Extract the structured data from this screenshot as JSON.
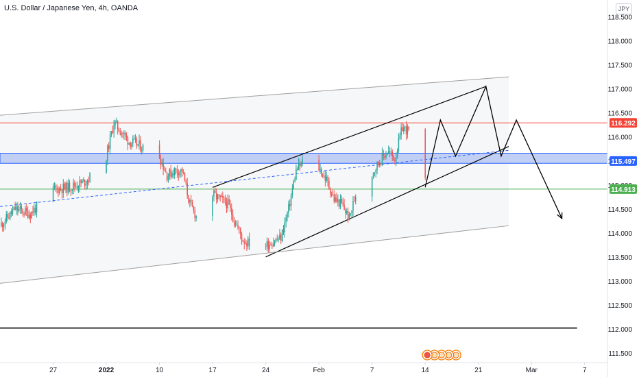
{
  "header": {
    "title": "U.S. Dollar / Japanese Yen, 4h, OANDA",
    "currency": "JPY"
  },
  "colors": {
    "up": "#26a69a",
    "down": "#ef5350",
    "red_line": "#f44336",
    "green_line": "#4caf50",
    "zone_fill": "#b9c8f5",
    "zone_border": "#2962ff",
    "drawing": "#000000",
    "channel": "#9e9e9e",
    "axis_text": "#131722"
  },
  "chart_data": {
    "type": "candlestick",
    "title": "U.S. Dollar / Japanese Yen, 4h, OANDA",
    "y_axis": {
      "range": [
        111.3,
        118.85
      ],
      "ticks": [
        "118.500",
        "118.000",
        "117.500",
        "117.000",
        "116.500",
        "116.000",
        "115.500",
        "115.000",
        "114.500",
        "114.000",
        "113.500",
        "113.000",
        "112.500",
        "112.000",
        "111.500"
      ],
      "tick_values": [
        118.5,
        118.0,
        117.5,
        117.0,
        116.5,
        116.0,
        115.5,
        115.0,
        114.5,
        114.0,
        113.5,
        113.0,
        112.5,
        112.0,
        111.5
      ]
    },
    "x_axis": {
      "labels": [
        "27",
        "2022",
        "10",
        "17",
        "24",
        "Feb",
        "7",
        "14",
        "21",
        "Mar",
        "7"
      ],
      "label_dates": [
        "2021-12-27",
        "2022-01-03",
        "2022-01-10",
        "2022-01-17",
        "2022-01-24",
        "2022-01-31",
        "2022-02-07",
        "2022-02-14",
        "2022-02-21",
        "2022-02-28",
        "2022-03-07"
      ],
      "range": [
        "2021-12-20",
        "2022-03-10"
      ]
    },
    "price_labels": [
      {
        "text": "116.292",
        "value": 116.292,
        "color": "#f44336"
      },
      {
        "text": "115.497",
        "value": 115.497,
        "color": "#2962ff"
      },
      {
        "text": "114.913",
        "value": 114.913,
        "color": "#4caf50"
      }
    ],
    "horizontal_levels": [
      {
        "value": 116.292,
        "color": "#f44336"
      },
      {
        "value": 114.913,
        "color": "#4caf50"
      },
      {
        "value": 112.02,
        "color": "#000000"
      }
    ],
    "zone": {
      "from": 115.45,
      "to": 115.66
    },
    "close_path": [
      [
        "2021-12-20",
        114.15
      ],
      [
        "2021-12-22",
        114.5
      ],
      [
        "2021-12-24",
        114.4
      ],
      [
        "2021-12-27",
        114.9
      ],
      [
        "2021-12-29",
        114.95
      ],
      [
        "2021-12-31",
        115.05
      ],
      [
        "2022-01-02",
        115.3
      ],
      [
        "2022-01-03",
        115.6
      ],
      [
        "2022-01-04",
        116.3
      ],
      [
        "2022-01-05",
        116.1
      ],
      [
        "2022-01-06",
        115.9
      ],
      [
        "2022-01-07",
        115.85
      ],
      [
        "2022-01-10",
        115.6
      ],
      [
        "2022-01-11",
        115.2
      ],
      [
        "2022-01-12",
        115.3
      ],
      [
        "2022-01-13",
        115.3
      ],
      [
        "2022-01-14",
        114.6
      ],
      [
        "2022-01-15",
        114.3
      ],
      [
        "2022-01-16",
        113.6
      ],
      [
        "2022-01-17",
        114.8
      ],
      [
        "2022-01-19",
        114.6
      ],
      [
        "2022-01-21",
        113.85
      ],
      [
        "2022-01-23",
        113.7
      ],
      [
        "2022-01-24",
        113.75
      ],
      [
        "2022-01-26",
        113.9
      ],
      [
        "2022-01-27",
        114.5
      ],
      [
        "2022-01-28",
        115.3
      ],
      [
        "2022-01-29",
        115.5
      ],
      [
        "2022-01-30",
        115.6
      ],
      [
        "2022-01-31",
        115.35
      ],
      [
        "2022-02-01",
        115.1
      ],
      [
        "2022-02-02",
        114.7
      ],
      [
        "2022-02-03",
        114.6
      ],
      [
        "2022-02-04",
        114.3
      ],
      [
        "2022-02-05",
        114.9
      ],
      [
        "2022-02-06",
        115.2
      ],
      [
        "2022-02-07",
        115.25
      ],
      [
        "2022-02-08",
        115.5
      ],
      [
        "2022-02-09",
        115.7
      ],
      [
        "2022-02-10",
        115.55
      ],
      [
        "2022-02-11",
        116.2
      ],
      [
        "2022-02-12",
        116.1
      ],
      [
        "2022-02-13",
        115.9
      ],
      [
        "2022-02-14",
        115.05
      ]
    ],
    "projection": [
      [
        "2022-02-14",
        114.95
      ],
      [
        "2022-02-16",
        116.35
      ],
      [
        "2022-02-18",
        115.6
      ],
      [
        "2022-02-22",
        117.05
      ],
      [
        "2022-02-24",
        115.6
      ],
      [
        "2022-02-26",
        116.35
      ],
      [
        "2022-03-04",
        114.3
      ]
    ],
    "trendlines": [
      {
        "name": "rising-channel-upper",
        "from": [
          "2022-01-17",
          114.95
        ],
        "to": [
          "2022-02-22",
          117.05
        ]
      },
      {
        "name": "rising-channel-lower",
        "from": [
          "2022-01-24",
          113.5
        ],
        "to": [
          "2022-02-25",
          115.8
        ]
      },
      {
        "name": "regression-upper",
        "from": [
          "2021-12-20",
          116.45
        ],
        "to": [
          "2022-02-25",
          117.25
        ]
      },
      {
        "name": "regression-lower",
        "from": [
          "2021-12-20",
          112.95
        ],
        "to": [
          "2022-02-25",
          114.15
        ]
      },
      {
        "name": "regression-mid",
        "from": [
          "2021-12-20",
          114.55
        ],
        "to": [
          "2022-02-25",
          115.72
        ],
        "dashed": true
      }
    ],
    "events": {
      "x": "2022-02-13",
      "count": 5
    },
    "grid": false
  }
}
